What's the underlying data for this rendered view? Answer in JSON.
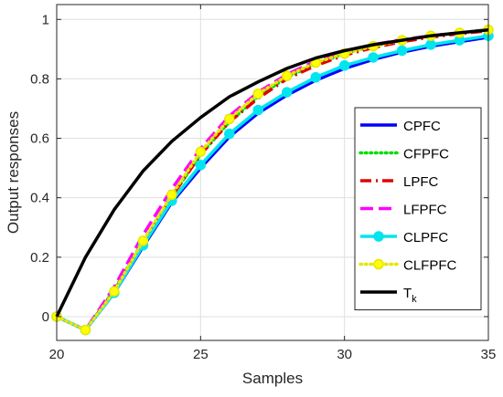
{
  "chart_data": {
    "type": "line",
    "title": "",
    "xlabel": "Samples",
    "ylabel": "Output responses",
    "xlim": [
      20,
      35
    ],
    "ylim": [
      -0.08,
      1.05
    ],
    "xticks": [
      "20",
      "25",
      "30",
      "35"
    ],
    "xtick_values": [
      20,
      25,
      30,
      35
    ],
    "yticks": [
      "0",
      "0.2",
      "0.4",
      "0.6",
      "0.8",
      "1"
    ],
    "ytick_values": [
      0,
      0.2,
      0.4,
      0.6,
      0.8,
      1
    ],
    "grid": true,
    "legend_position": "right",
    "x": [
      20,
      21,
      22,
      23,
      24,
      25,
      26,
      27,
      28,
      29,
      30,
      31,
      32,
      33,
      34,
      35
    ],
    "series": [
      {
        "name": "CPFC",
        "color": "#0000ff",
        "style": "solid",
        "values": [
          0,
          -0.045,
          0.08,
          0.235,
          0.385,
          0.5,
          0.605,
          0.685,
          0.745,
          0.795,
          0.835,
          0.865,
          0.89,
          0.91,
          0.925,
          0.94
        ]
      },
      {
        "name": "CFPFC",
        "color": "#00dd00",
        "style": "dotted",
        "values": [
          0,
          -0.045,
          0.09,
          0.255,
          0.405,
          0.545,
          0.655,
          0.74,
          0.805,
          0.85,
          0.885,
          0.91,
          0.93,
          0.945,
          0.955,
          0.965
        ]
      },
      {
        "name": "LPFC",
        "color": "#e00000",
        "style": "dashdot",
        "values": [
          0,
          -0.045,
          0.085,
          0.245,
          0.405,
          0.545,
          0.655,
          0.735,
          0.8,
          0.845,
          0.88,
          0.905,
          0.925,
          0.94,
          0.952,
          0.962
        ]
      },
      {
        "name": "LFPFC",
        "color": "#ff00ff",
        "style": "dashed",
        "values": [
          0,
          -0.045,
          0.1,
          0.275,
          0.43,
          0.565,
          0.675,
          0.755,
          0.815,
          0.86,
          0.89,
          0.915,
          0.932,
          0.945,
          0.955,
          0.965
        ]
      },
      {
        "name": "CLPFC",
        "color": "#00e5ee",
        "style": "solid-marker",
        "values": [
          0,
          -0.045,
          0.08,
          0.24,
          0.39,
          0.51,
          0.615,
          0.695,
          0.755,
          0.805,
          0.845,
          0.872,
          0.895,
          0.915,
          0.93,
          0.945
        ]
      },
      {
        "name": "CLFPFC",
        "color": "#e6e600",
        "style": "dotted-marker",
        "values": [
          0,
          -0.045,
          0.085,
          0.255,
          0.41,
          0.555,
          0.665,
          0.75,
          0.81,
          0.855,
          0.885,
          0.91,
          0.93,
          0.945,
          0.955,
          0.965
        ]
      },
      {
        "name": "T",
        "subscript": "k",
        "color": "#000000",
        "style": "solid",
        "values": [
          0,
          0.2,
          0.36,
          0.49,
          0.59,
          0.67,
          0.74,
          0.79,
          0.835,
          0.87,
          0.895,
          0.915,
          0.93,
          0.945,
          0.955,
          0.965
        ]
      }
    ]
  }
}
